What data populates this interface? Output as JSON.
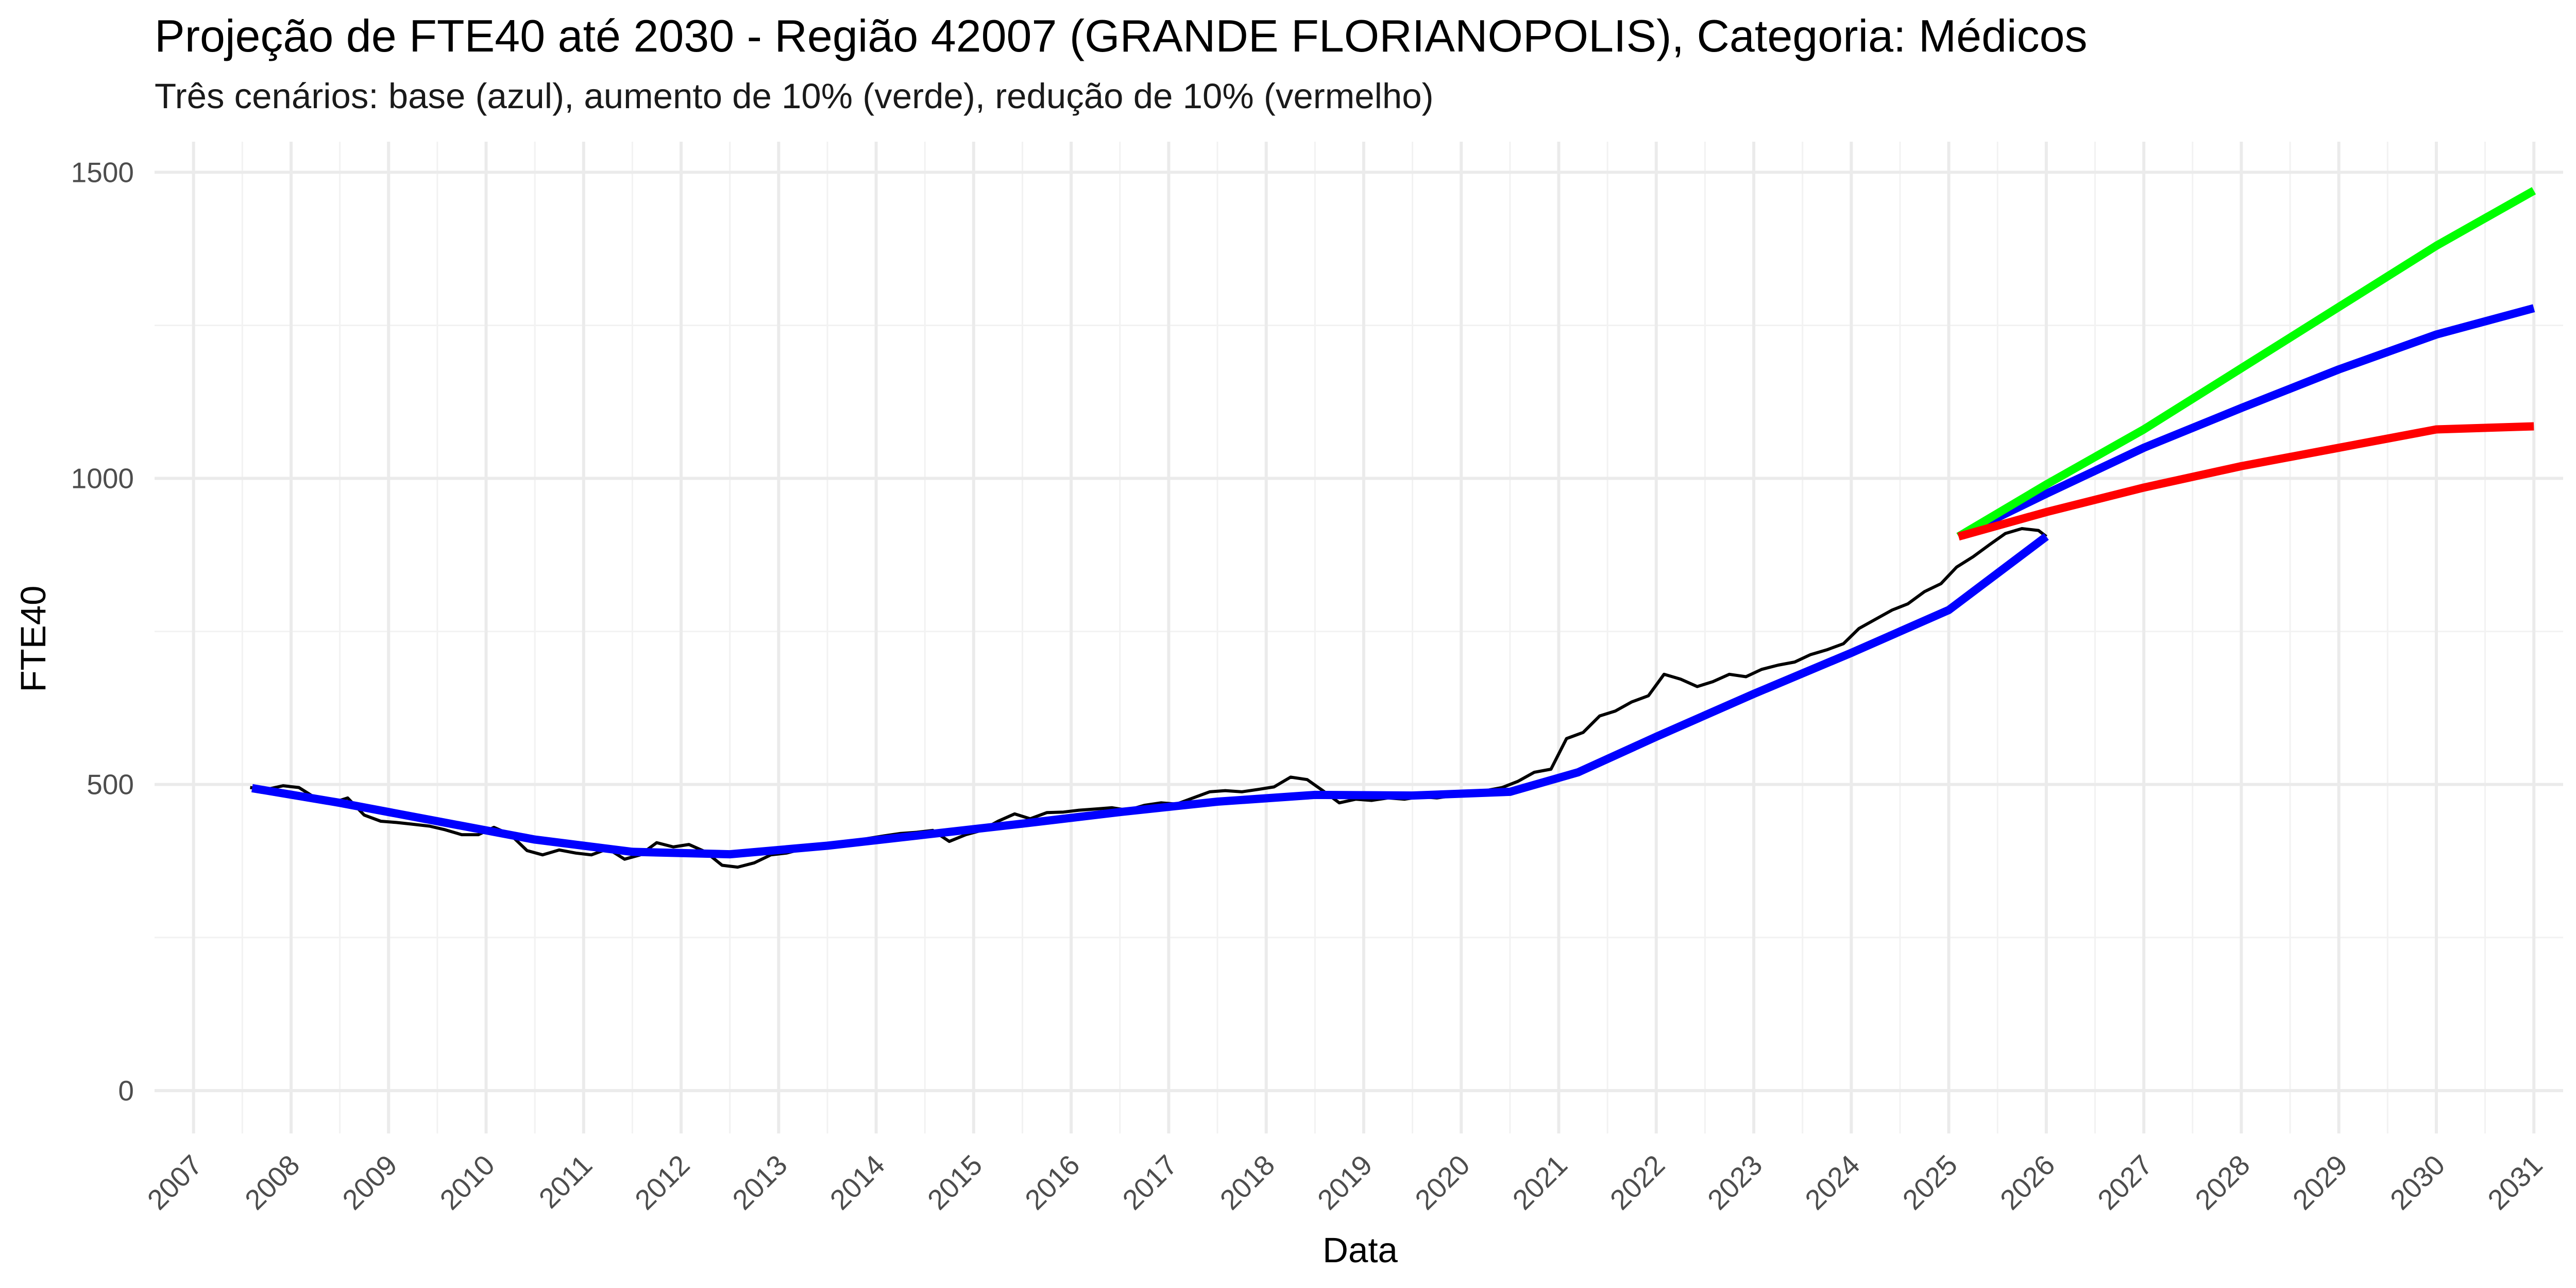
{
  "chart_data": {
    "type": "line",
    "title": "Projeção de FTE40 até 2030 - Região 42007 (GRANDE FLORIANOPOLIS), Categoria: Médicos",
    "subtitle": "Três cenários: base (azul), aumento de 10% (verde), redução de 10% (vermelho)",
    "xlabel": "Data",
    "ylabel": "FTE40",
    "xlim": [
      2006.6,
      2031.3
    ],
    "ylim": [
      -70,
      1550
    ],
    "x_ticks": [
      "2007",
      "2008",
      "2009",
      "2010",
      "2011",
      "2012",
      "2013",
      "2014",
      "2015",
      "2016",
      "2017",
      "2018",
      "2019",
      "2020",
      "2021",
      "2022",
      "2023",
      "2024",
      "2025",
      "2026",
      "2027",
      "2028",
      "2029",
      "2030",
      "2031"
    ],
    "y_ticks": [
      0,
      500,
      1000,
      1500
    ],
    "grid": true,
    "legend": "none",
    "series": [
      {
        "color": "#000000",
        "style": "observed",
        "points": [
          [
            2007.58,
            495
          ],
          [
            2007.75,
            492
          ],
          [
            2007.92,
            498
          ],
          [
            2008.08,
            495
          ],
          [
            2008.25,
            478
          ],
          [
            2008.42,
            470
          ],
          [
            2008.58,
            478
          ],
          [
            2008.75,
            450
          ],
          [
            2008.92,
            440
          ],
          [
            2009.08,
            438
          ],
          [
            2009.25,
            435
          ],
          [
            2009.42,
            432
          ],
          [
            2009.58,
            426
          ],
          [
            2009.75,
            418
          ],
          [
            2009.92,
            418
          ],
          [
            2010.08,
            430
          ],
          [
            2010.25,
            418
          ],
          [
            2010.42,
            392
          ],
          [
            2010.58,
            385
          ],
          [
            2010.75,
            393
          ],
          [
            2010.92,
            388
          ],
          [
            2011.08,
            385
          ],
          [
            2011.25,
            395
          ],
          [
            2011.42,
            378
          ],
          [
            2011.58,
            385
          ],
          [
            2011.75,
            405
          ],
          [
            2011.92,
            398
          ],
          [
            2012.08,
            402
          ],
          [
            2012.25,
            390
          ],
          [
            2012.42,
            368
          ],
          [
            2012.58,
            365
          ],
          [
            2012.75,
            372
          ],
          [
            2012.92,
            385
          ],
          [
            2013.08,
            388
          ],
          [
            2013.25,
            395
          ],
          [
            2013.42,
            400
          ],
          [
            2013.58,
            402
          ],
          [
            2013.75,
            406
          ],
          [
            2013.92,
            412
          ],
          [
            2014.08,
            416
          ],
          [
            2014.25,
            420
          ],
          [
            2014.42,
            422
          ],
          [
            2014.58,
            425
          ],
          [
            2014.75,
            407
          ],
          [
            2014.92,
            418
          ],
          [
            2015.08,
            425
          ],
          [
            2015.25,
            440
          ],
          [
            2015.42,
            452
          ],
          [
            2015.58,
            444
          ],
          [
            2015.75,
            454
          ],
          [
            2015.92,
            455
          ],
          [
            2016.08,
            458
          ],
          [
            2016.25,
            460
          ],
          [
            2016.42,
            462
          ],
          [
            2016.58,
            458
          ],
          [
            2016.75,
            466
          ],
          [
            2016.92,
            470
          ],
          [
            2017.08,
            468
          ],
          [
            2017.25,
            478
          ],
          [
            2017.42,
            488
          ],
          [
            2017.58,
            490
          ],
          [
            2017.75,
            488
          ],
          [
            2017.92,
            492
          ],
          [
            2018.08,
            496
          ],
          [
            2018.25,
            512
          ],
          [
            2018.42,
            508
          ],
          [
            2018.58,
            490
          ],
          [
            2018.75,
            470
          ],
          [
            2018.92,
            476
          ],
          [
            2019.08,
            474
          ],
          [
            2019.25,
            478
          ],
          [
            2019.42,
            476
          ],
          [
            2019.58,
            480
          ],
          [
            2019.75,
            478
          ],
          [
            2019.92,
            482
          ],
          [
            2020.08,
            485
          ],
          [
            2020.25,
            490
          ],
          [
            2020.42,
            495
          ],
          [
            2020.58,
            505
          ],
          [
            2020.75,
            520
          ],
          [
            2020.92,
            525
          ],
          [
            2021.08,
            575
          ],
          [
            2021.25,
            585
          ],
          [
            2021.42,
            612
          ],
          [
            2021.58,
            620
          ],
          [
            2021.75,
            635
          ],
          [
            2021.92,
            645
          ],
          [
            2022.08,
            680
          ],
          [
            2022.25,
            672
          ],
          [
            2022.42,
            660
          ],
          [
            2022.58,
            668
          ],
          [
            2022.75,
            680
          ],
          [
            2022.92,
            676
          ],
          [
            2023.08,
            688
          ],
          [
            2023.25,
            695
          ],
          [
            2023.42,
            700
          ],
          [
            2023.58,
            712
          ],
          [
            2023.75,
            720
          ],
          [
            2023.92,
            730
          ],
          [
            2024.08,
            755
          ],
          [
            2024.25,
            770
          ],
          [
            2024.42,
            785
          ],
          [
            2024.58,
            795
          ],
          [
            2024.75,
            815
          ],
          [
            2024.92,
            828
          ],
          [
            2025.08,
            855
          ],
          [
            2025.25,
            872
          ],
          [
            2025.42,
            892
          ],
          [
            2025.58,
            910
          ],
          [
            2025.75,
            918
          ],
          [
            2025.92,
            915
          ],
          [
            2026.0,
            905
          ]
        ]
      },
      {
        "color": "#0000ff",
        "style": "trend",
        "points": [
          [
            2007.6,
            494
          ],
          [
            2008.5,
            470
          ],
          [
            2009.5,
            440
          ],
          [
            2010.5,
            410
          ],
          [
            2011.5,
            390
          ],
          [
            2012.5,
            386
          ],
          [
            2013.5,
            400
          ],
          [
            2014.5,
            418
          ],
          [
            2015.5,
            436
          ],
          [
            2016.5,
            455
          ],
          [
            2017.5,
            472
          ],
          [
            2018.5,
            483
          ],
          [
            2019.5,
            482
          ],
          [
            2020.5,
            488
          ],
          [
            2021.2,
            520
          ],
          [
            2022.0,
            578
          ],
          [
            2023.0,
            648
          ],
          [
            2024.0,
            715
          ],
          [
            2025.0,
            785
          ],
          [
            2026.0,
            905
          ]
        ]
      },
      {
        "name": "base",
        "color": "#0000ff",
        "style": "scenario",
        "points": [
          [
            2025.1,
            905
          ],
          [
            2026.0,
            975
          ],
          [
            2027.0,
            1050
          ],
          [
            2028.0,
            1115
          ],
          [
            2029.0,
            1178
          ],
          [
            2030.0,
            1235
          ],
          [
            2031.0,
            1278
          ]
        ]
      },
      {
        "name": "aumento de 10%",
        "color": "#00ff00",
        "style": "scenario",
        "points": [
          [
            2025.1,
            905
          ],
          [
            2026.0,
            990
          ],
          [
            2027.0,
            1080
          ],
          [
            2028.0,
            1180
          ],
          [
            2029.0,
            1280
          ],
          [
            2030.0,
            1380
          ],
          [
            2031.0,
            1470
          ]
        ]
      },
      {
        "name": "redução de 10%",
        "color": "#ff0000",
        "style": "scenario",
        "points": [
          [
            2025.1,
            905
          ],
          [
            2026.0,
            945
          ],
          [
            2027.0,
            985
          ],
          [
            2028.0,
            1020
          ],
          [
            2029.0,
            1050
          ],
          [
            2030.0,
            1080
          ],
          [
            2031.0,
            1085
          ]
        ]
      }
    ]
  }
}
